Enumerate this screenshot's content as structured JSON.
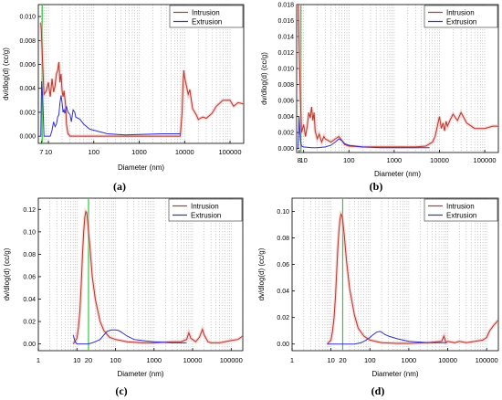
{
  "chart_data": [
    {
      "panel": "(a)",
      "type": "line",
      "xscale": "log",
      "xlim": [
        6,
        200000
      ],
      "ylim": [
        -0.0006,
        0.011
      ],
      "xlabel": "Diameter (nm)",
      "ylabel": "dv/dlog(d)  (cc/g)",
      "yticks": [
        "0.000",
        "0.002",
        "0.004",
        "0.006",
        "0.008",
        "0.010"
      ],
      "ytick_values": [
        0,
        0.002,
        0.004,
        0.006,
        0.008,
        0.01
      ],
      "xticks": [
        "7",
        "10",
        "100",
        "1000",
        "10000",
        "100000"
      ],
      "xtick_values": [
        7,
        10,
        100,
        1000,
        10000,
        100000
      ],
      "vline_x": 7.3,
      "legend_position": "top-right",
      "series": [
        {
          "name": "Intrusion",
          "color": "#b03a2e",
          "x": [
            6.8,
            7.0,
            7.5,
            8,
            9,
            10,
            11,
            12,
            13,
            14,
            15,
            16,
            17,
            18,
            19,
            20,
            21,
            22,
            23,
            24,
            25,
            27,
            30,
            40,
            100,
            1000,
            8000,
            8800,
            9200,
            9600,
            10000,
            11000,
            12000,
            13000,
            15000,
            18000,
            20000,
            25000,
            30000,
            40000,
            50000,
            70000,
            100000,
            120000,
            150000,
            200000
          ],
          "y": [
            0.0095,
            0.0088,
            0.006,
            0.0035,
            0.0038,
            0.0045,
            0.0033,
            0.0048,
            0.0037,
            0.0042,
            0.0052,
            0.0055,
            0.0062,
            0.0045,
            0.0052,
            0.0038,
            0.0033,
            0.0038,
            0.0032,
            0.0025,
            0.001,
            0.0002,
            0.0,
            0.0,
            0.0,
            0.0,
            0.0,
            0.002,
            0.0043,
            0.0055,
            0.0049,
            0.0042,
            0.0035,
            0.0039,
            0.0023,
            0.0018,
            0.0014,
            0.0016,
            0.0015,
            0.0019,
            0.0025,
            0.003,
            0.003,
            0.0025,
            0.0028,
            0.0027
          ]
        },
        {
          "name": "Extrusion",
          "color": "#3030d0",
          "x": [
            6.8,
            7.1,
            7.5,
            8,
            9,
            10,
            11,
            12,
            13,
            14,
            15,
            16,
            17,
            18,
            19,
            20,
            21,
            22,
            23,
            25,
            27,
            30,
            32,
            35,
            38,
            40,
            45,
            50,
            60,
            70,
            80,
            100,
            200,
            500,
            1000,
            3000,
            7000,
            8000
          ],
          "y": [
            0.0,
            0.0046,
            0.0032,
            0.0,
            0.0,
            0.0,
            0.0,
            0.0005,
            0.0012,
            0.0008,
            0.001,
            0.0016,
            0.0018,
            0.0028,
            0.0034,
            0.0028,
            0.002,
            0.0022,
            0.0019,
            0.0025,
            0.002,
            0.0018,
            0.0012,
            0.0022,
            0.002,
            0.0016,
            0.0015,
            0.0014,
            0.001,
            0.0008,
            0.0006,
            0.0005,
            0.0002,
            0.0001,
            0.00015,
            0.0002,
            0.0002,
            0.0002
          ]
        }
      ],
      "caption": "(a)"
    },
    {
      "panel": "(b)",
      "type": "line",
      "xscale": "log",
      "xlim": [
        7,
        200000
      ],
      "ylim": [
        -0.0005,
        0.018
      ],
      "xlabel": "Diameter (nm)",
      "ylabel": "dv/dlog(d)  (cc/g)",
      "yticks": [
        "0.000",
        "0.002",
        "0.004",
        "0.006",
        "0.008",
        "0.010",
        "0.012",
        "0.014",
        "0.016",
        "0.018"
      ],
      "ytick_values": [
        0,
        0.002,
        0.004,
        0.006,
        0.008,
        0.01,
        0.012,
        0.014,
        0.016,
        0.018
      ],
      "xticks": [
        "8",
        "10",
        "100",
        "1000",
        "10000",
        "100000"
      ],
      "xtick_values": [
        8,
        10,
        100,
        1000,
        10000,
        100000
      ],
      "vline_x": 8.7,
      "legend_position": "top-right",
      "series": [
        {
          "name": "Intrusion",
          "color": "#b03a2e",
          "x": [
            7.6,
            8.0,
            8.5,
            9,
            10,
            11,
            12,
            13,
            14,
            15,
            16,
            17,
            18,
            20,
            22,
            25,
            28,
            30,
            35,
            40,
            50,
            60,
            70,
            80,
            100,
            200,
            500,
            1000,
            3000,
            5000,
            7000,
            8000,
            9000,
            10000,
            11000,
            12000,
            13000,
            14000,
            15000,
            17000,
            20000,
            25000,
            30000,
            40000,
            60000,
            100000,
            150000,
            200000
          ],
          "y": [
            0.018,
            0.012,
            0.006,
            0.002,
            0.003,
            0.0015,
            0.0028,
            0.0045,
            0.0038,
            0.0052,
            0.0035,
            0.0045,
            0.0022,
            0.0012,
            0.0018,
            0.0008,
            0.0015,
            0.0012,
            0.001,
            0.0008,
            0.0012,
            0.0015,
            0.001,
            0.0005,
            0.0003,
            0.0002,
            0.0002,
            0.0002,
            0.0002,
            0.0003,
            0.0008,
            0.0015,
            0.0028,
            0.004,
            0.0025,
            0.0032,
            0.0022,
            0.0034,
            0.0028,
            0.0035,
            0.0043,
            0.0035,
            0.0045,
            0.0032,
            0.0025,
            0.0025,
            0.0028,
            0.0028
          ]
        },
        {
          "name": "Extrusion",
          "color": "#3030d0",
          "x": [
            7.6,
            7.9,
            8.1,
            8.5,
            9,
            10,
            15,
            20,
            30,
            40,
            50,
            60,
            70,
            80,
            100,
            200,
            500,
            1000,
            3000,
            6000
          ],
          "y": [
            0.0,
            0.004,
            0.003,
            0.001,
            0.0003,
            0.0002,
            0.0001,
            0.0001,
            0.0002,
            0.0004,
            0.0008,
            0.0012,
            0.001,
            0.0006,
            0.0004,
            0.0002,
            0.0001,
            0.0001,
            0.0001,
            0.0001
          ]
        }
      ],
      "caption": "(b)"
    },
    {
      "panel": "(c)",
      "type": "line",
      "xscale": "log",
      "xlim": [
        1,
        200000
      ],
      "ylim": [
        -0.006,
        0.13
      ],
      "xlabel": "Diameter (nm)",
      "ylabel": "dv/dlog(d)  (cc/g)",
      "yticks": [
        "0.00",
        "0.02",
        "0.04",
        "0.06",
        "0.08",
        "0.10",
        "0.12"
      ],
      "ytick_values": [
        0,
        0.02,
        0.04,
        0.06,
        0.08,
        0.1,
        0.12
      ],
      "xticks": [
        "1",
        "10",
        "20",
        "100",
        "1000",
        "10000",
        "100000"
      ],
      "xtick_values": [
        1,
        10,
        20,
        100,
        1000,
        10000,
        100000
      ],
      "vline_x": 20,
      "legend_position": "top-right",
      "series": [
        {
          "name": "Intrusion",
          "color": "#b03a2e",
          "x": [
            8,
            10,
            11,
            12,
            13,
            14,
            15,
            16,
            17,
            18,
            19,
            20,
            22,
            25,
            30,
            40,
            50,
            70,
            100,
            200,
            500,
            1000,
            3000,
            5000,
            7000,
            8000,
            9000,
            10000,
            12000,
            15000,
            18000,
            20000,
            25000,
            30000,
            50000,
            100000,
            150000,
            200000
          ],
          "y": [
            0.0,
            0.005,
            0.015,
            0.03,
            0.055,
            0.08,
            0.1,
            0.113,
            0.118,
            0.117,
            0.11,
            0.1,
            0.085,
            0.06,
            0.04,
            0.02,
            0.012,
            0.006,
            0.004,
            0.002,
            0.001,
            0.001,
            0.002,
            0.002,
            0.004,
            0.01,
            0.005,
            0.004,
            0.002,
            0.006,
            0.013,
            0.008,
            0.002,
            0.001,
            0.001,
            0.003,
            0.004,
            0.007
          ]
        },
        {
          "name": "Extrusion",
          "color": "#3030d0",
          "x": [
            8,
            9,
            10,
            15,
            20,
            25,
            30,
            40,
            50,
            60,
            70,
            80,
            100,
            120,
            150,
            200,
            300,
            500,
            1000,
            3000,
            7000
          ],
          "y": [
            0.008,
            0.002,
            0.0,
            0.0,
            0.0,
            0.001,
            0.002,
            0.004,
            0.008,
            0.011,
            0.012,
            0.0125,
            0.0125,
            0.012,
            0.01,
            0.007,
            0.004,
            0.003,
            0.002,
            0.001,
            0.001
          ]
        }
      ],
      "caption": "(c)"
    },
    {
      "panel": "(d)",
      "type": "line",
      "xscale": "log",
      "xlim": [
        1,
        200000
      ],
      "ylim": [
        -0.005,
        0.11
      ],
      "xlabel": "Diameter (nm)",
      "ylabel": "dv/dlog(d)  (cc/g)",
      "yticks": [
        "0.00",
        "0.02",
        "0.04",
        "0.06",
        "0.08",
        "0.10"
      ],
      "ytick_values": [
        0,
        0.02,
        0.04,
        0.06,
        0.08,
        0.1
      ],
      "xticks": [
        "1",
        "10",
        "20",
        "100",
        "1000",
        "10000",
        "100000"
      ],
      "xtick_values": [
        1,
        10,
        20,
        100,
        1000,
        10000,
        100000
      ],
      "vline_x": 20,
      "legend_position": "top-right",
      "series": [
        {
          "name": "Intrusion",
          "color": "#b03a2e",
          "x": [
            8,
            10,
            11,
            12,
            13,
            14,
            15,
            16,
            17,
            18,
            19,
            20,
            22,
            25,
            30,
            40,
            50,
            70,
            100,
            200,
            500,
            1000,
            3000,
            7000,
            8000,
            9000,
            10000,
            15000,
            20000,
            30000,
            50000,
            80000,
            100000,
            120000,
            150000,
            200000
          ],
          "y": [
            0.0,
            0.003,
            0.01,
            0.02,
            0.035,
            0.055,
            0.072,
            0.085,
            0.094,
            0.098,
            0.097,
            0.093,
            0.082,
            0.063,
            0.042,
            0.022,
            0.012,
            0.006,
            0.003,
            0.001,
            0.0005,
            0.0005,
            0.001,
            0.002,
            0.006,
            0.001,
            0.002,
            0.001,
            0.002,
            0.001,
            0.002,
            0.003,
            0.005,
            0.01,
            0.014,
            0.018
          ]
        },
        {
          "name": "Extrusion",
          "color": "#3030d0",
          "x": [
            8,
            10,
            20,
            40,
            60,
            80,
            100,
            120,
            150,
            180,
            200,
            250,
            300,
            500,
            1000,
            3000,
            7000,
            9000
          ],
          "y": [
            0.0,
            0.0,
            0.0,
            0.0,
            0.001,
            0.003,
            0.005,
            0.007,
            0.009,
            0.0095,
            0.009,
            0.007,
            0.006,
            0.004,
            0.002,
            0.001,
            0.001,
            0.001
          ]
        }
      ],
      "caption": "(d)"
    }
  ]
}
